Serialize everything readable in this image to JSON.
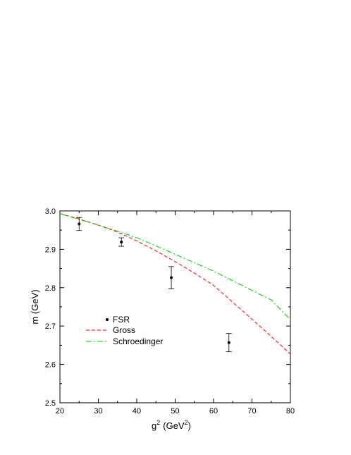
{
  "chart_data": {
    "type": "line",
    "title": "",
    "xlabel": "g",
    "xlabel_sup1": "2",
    "xlabel_unit": "(GeV",
    "xlabel_sup2": "2",
    "xlabel_close": ")",
    "ylabel": "m (GeV)",
    "xlim": [
      20,
      80
    ],
    "ylim": [
      2.5,
      3.0
    ],
    "x_ticks": [
      "20",
      "30",
      "40",
      "50",
      "60",
      "70",
      "80"
    ],
    "y_ticks": [
      "2.5",
      "2.6",
      "2.7",
      "2.8",
      "2.9",
      "3.0"
    ],
    "grid": false,
    "legend_position": "lower-left",
    "series": [
      {
        "name": "FSR",
        "kind": "points-with-errorbars",
        "color": "#000000",
        "x": [
          25,
          36,
          49,
          64
        ],
        "y": [
          2.966,
          2.919,
          2.826,
          2.657
        ],
        "err": [
          0.017,
          0.011,
          0.029,
          0.024
        ]
      },
      {
        "name": "Gross",
        "kind": "dashed-line",
        "color": "#ff0000",
        "x": [
          20,
          25,
          30,
          35,
          40,
          45,
          50,
          55,
          60,
          65,
          70,
          75,
          80
        ],
        "y": [
          2.993,
          2.979,
          2.963,
          2.945,
          2.922,
          2.896,
          2.868,
          2.838,
          2.806,
          2.762,
          2.718,
          2.673,
          2.627
        ]
      },
      {
        "name": "Schroedinger",
        "kind": "dashdot-line",
        "color": "#00cc00",
        "x": [
          20,
          25,
          30,
          35,
          40,
          45,
          50,
          55,
          60,
          65,
          70,
          75,
          80
        ],
        "y": [
          2.993,
          2.978,
          2.963,
          2.947,
          2.93,
          2.909,
          2.887,
          2.865,
          2.843,
          2.818,
          2.793,
          2.768,
          2.717
        ]
      }
    ]
  }
}
